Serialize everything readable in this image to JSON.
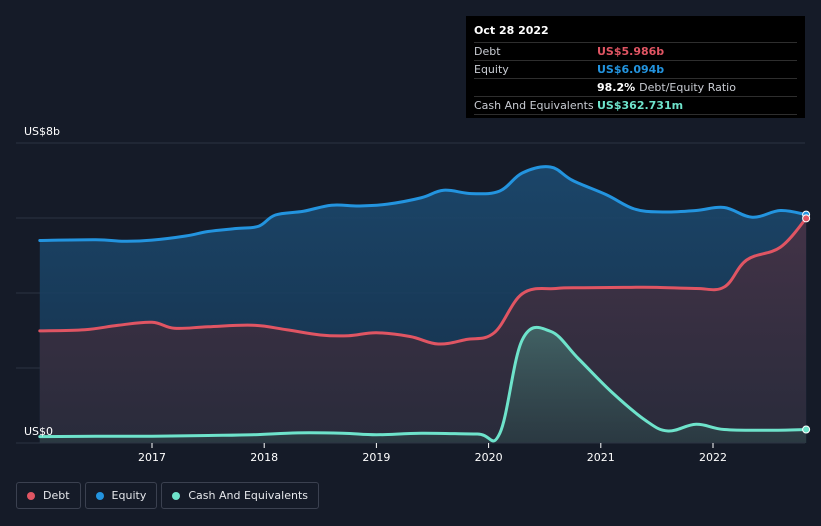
{
  "tooltip": {
    "date": "Oct 28 2022",
    "debt_label": "Debt",
    "debt_value": "US$5.986b",
    "equity_label": "Equity",
    "equity_value": "US$6.094b",
    "ratio_value": "98.2%",
    "ratio_label": "Debt/Equity Ratio",
    "cash_label": "Cash And Equivalents",
    "cash_value": "US$362.731m"
  },
  "colors": {
    "debt": "#e05563",
    "equity": "#2394df",
    "cash": "#6ee3cb",
    "background": "#151b28"
  },
  "legend": [
    {
      "name": "Debt",
      "color": "#e05563"
    },
    {
      "name": "Equity",
      "color": "#2394df"
    },
    {
      "name": "Cash And Equivalents",
      "color": "#6ee3cb"
    }
  ],
  "chart_data": {
    "type": "area",
    "y_top_label": "US$8b",
    "y_bottom_label": "US$0",
    "ylim": [
      0,
      8
    ],
    "xlim": [
      2016.0,
      2022.83
    ],
    "x_tick_labels": [
      "2017",
      "2018",
      "2019",
      "2020",
      "2021",
      "2022"
    ],
    "x_ticks": [
      2017,
      2018,
      2019,
      2020,
      2021,
      2022
    ],
    "grid": true,
    "legend_position": "bottom-left",
    "series": [
      {
        "name": "Equity",
        "points": [
          [
            2016.0,
            5.4
          ],
          [
            2016.5,
            5.42
          ],
          [
            2016.75,
            5.38
          ],
          [
            2017.0,
            5.41
          ],
          [
            2017.3,
            5.52
          ],
          [
            2017.5,
            5.64
          ],
          [
            2017.75,
            5.72
          ],
          [
            2017.95,
            5.78
          ],
          [
            2018.1,
            6.08
          ],
          [
            2018.35,
            6.18
          ],
          [
            2018.6,
            6.34
          ],
          [
            2018.85,
            6.32
          ],
          [
            2019.1,
            6.37
          ],
          [
            2019.4,
            6.54
          ],
          [
            2019.6,
            6.74
          ],
          [
            2019.85,
            6.65
          ],
          [
            2020.1,
            6.72
          ],
          [
            2020.3,
            7.2
          ],
          [
            2020.55,
            7.36
          ],
          [
            2020.75,
            7.0
          ],
          [
            2021.05,
            6.62
          ],
          [
            2021.3,
            6.24
          ],
          [
            2021.55,
            6.16
          ],
          [
            2021.85,
            6.2
          ],
          [
            2022.1,
            6.28
          ],
          [
            2022.35,
            6.02
          ],
          [
            2022.6,
            6.2
          ],
          [
            2022.83,
            6.09
          ]
        ]
      },
      {
        "name": "Debt",
        "points": [
          [
            2016.0,
            2.99
          ],
          [
            2016.4,
            3.02
          ],
          [
            2016.7,
            3.14
          ],
          [
            2017.0,
            3.22
          ],
          [
            2017.2,
            3.06
          ],
          [
            2017.5,
            3.1
          ],
          [
            2017.9,
            3.14
          ],
          [
            2018.2,
            3.02
          ],
          [
            2018.5,
            2.88
          ],
          [
            2018.75,
            2.86
          ],
          [
            2019.0,
            2.94
          ],
          [
            2019.3,
            2.84
          ],
          [
            2019.55,
            2.64
          ],
          [
            2019.8,
            2.76
          ],
          [
            2020.05,
            2.94
          ],
          [
            2020.3,
            3.98
          ],
          [
            2020.6,
            4.12
          ],
          [
            2020.85,
            4.14
          ],
          [
            2021.2,
            4.15
          ],
          [
            2021.5,
            4.15
          ],
          [
            2021.85,
            4.12
          ],
          [
            2022.1,
            4.16
          ],
          [
            2022.3,
            4.88
          ],
          [
            2022.6,
            5.22
          ],
          [
            2022.83,
            5.99
          ]
        ]
      },
      {
        "name": "Cash And Equivalents",
        "points": [
          [
            2016.0,
            0.17
          ],
          [
            2016.5,
            0.18
          ],
          [
            2017.0,
            0.18
          ],
          [
            2017.5,
            0.2
          ],
          [
            2017.9,
            0.22
          ],
          [
            2018.3,
            0.27
          ],
          [
            2018.7,
            0.26
          ],
          [
            2019.0,
            0.22
          ],
          [
            2019.4,
            0.26
          ],
          [
            2019.9,
            0.24
          ],
          [
            2020.1,
            0.26
          ],
          [
            2020.3,
            2.75
          ],
          [
            2020.55,
            2.98
          ],
          [
            2020.8,
            2.25
          ],
          [
            2021.1,
            1.35
          ],
          [
            2021.4,
            0.6
          ],
          [
            2021.6,
            0.32
          ],
          [
            2021.85,
            0.5
          ],
          [
            2022.1,
            0.36
          ],
          [
            2022.5,
            0.34
          ],
          [
            2022.83,
            0.36
          ]
        ]
      }
    ]
  }
}
